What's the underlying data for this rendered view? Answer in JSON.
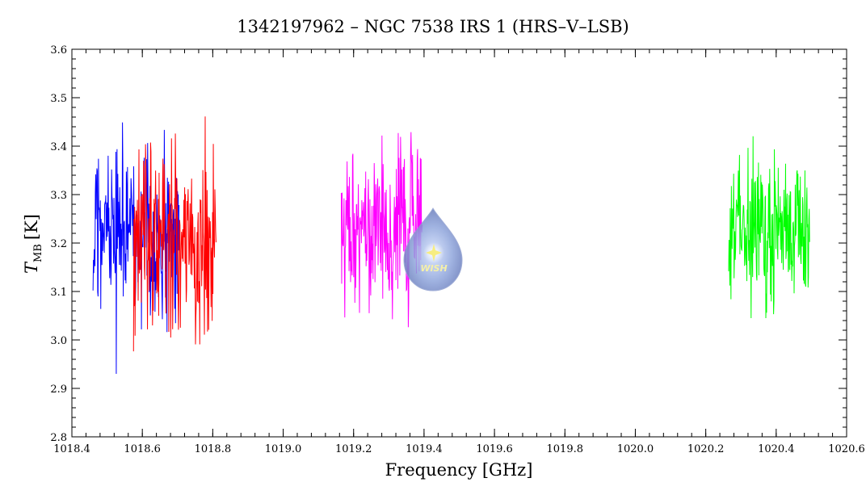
{
  "chart_data": {
    "type": "line",
    "title": "1342197962 – NGC 7538 IRS 1 (HRS–V–LSB)",
    "xlabel": "Frequency [GHz]",
    "ylabel_main": "T",
    "ylabel_sub": "MB",
    "ylabel_unit": "[K]",
    "xlim": [
      1018.4,
      1020.6
    ],
    "ylim": [
      2.8,
      3.6
    ],
    "x_ticks": [
      1018.4,
      1018.6,
      1018.8,
      1019.0,
      1019.2,
      1019.4,
      1019.6,
      1019.8,
      1020.0,
      1020.2,
      1020.4,
      1020.6
    ],
    "x_tick_labels": [
      "1018.4",
      "1018.6",
      "1018.8",
      "1019.0",
      "1019.2",
      "1019.4",
      "1019.6",
      "1019.8",
      "1020.0",
      "1020.2",
      "1020.4",
      "1020.6"
    ],
    "y_ticks": [
      2.8,
      2.9,
      3.0,
      3.1,
      3.2,
      3.3,
      3.4,
      3.5,
      3.6
    ],
    "y_tick_labels": [
      "2.8",
      "2.9",
      "3.0",
      "3.1",
      "3.2",
      "3.3",
      "3.4",
      "3.5",
      "3.6"
    ],
    "grid": false,
    "series": [
      {
        "color": "#0000ff",
        "x_range": [
          1018.46,
          1018.705
        ],
        "mean": 3.22,
        "spread": 0.09,
        "max": 3.455,
        "min": 2.93,
        "step": 0.0011,
        "seed": 11
      },
      {
        "color": "#ff0000",
        "x_range": [
          1018.575,
          1018.81
        ],
        "mean": 3.2,
        "spread": 0.09,
        "max": 3.49,
        "min": 2.905,
        "step": 0.0011,
        "seed": 23
      },
      {
        "color": "#ff00ff",
        "x_range": [
          1019.165,
          1019.395
        ],
        "mean": 3.23,
        "spread": 0.085,
        "max": 3.5,
        "min": 2.97,
        "step": 0.0011,
        "seed": 37
      },
      {
        "color": "#00ff00",
        "x_range": [
          1020.265,
          1020.495
        ],
        "mean": 3.23,
        "spread": 0.075,
        "max": 3.425,
        "min": 3.045,
        "step": 0.0011,
        "seed": 53
      }
    ]
  },
  "logo": {
    "text": "WISH"
  }
}
